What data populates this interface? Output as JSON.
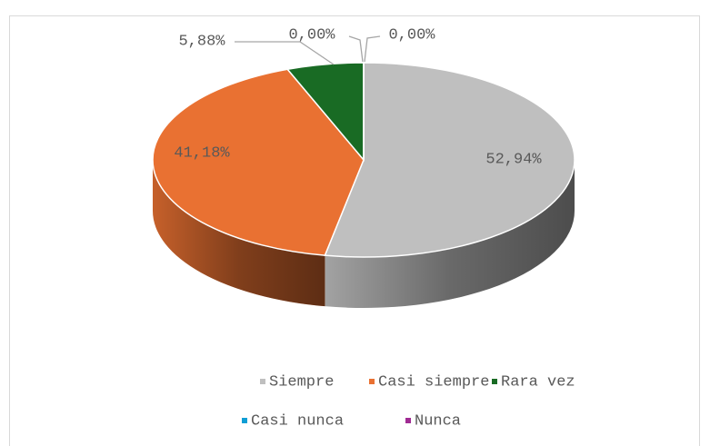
{
  "chart_data": {
    "type": "pie3d",
    "categories": [
      "Siempre",
      "Casi siempre",
      "Rara vez",
      "Casi nunca",
      "Nunca"
    ],
    "values": [
      52.94,
      41.18,
      5.88,
      0,
      0
    ],
    "value_labels": [
      "52,94%",
      "41,18%",
      "5,88%",
      "0,00%",
      "0,00%"
    ],
    "colors": [
      "#bfbfbf",
      "#e97132",
      "#196b24",
      "#0f9ed5",
      "#a02b93"
    ],
    "legend": "bottom"
  }
}
